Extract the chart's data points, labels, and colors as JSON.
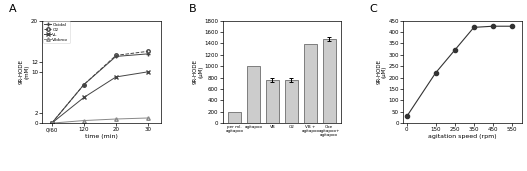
{
  "panelA": {
    "title": "A",
    "xlabel": "time (min)",
    "ylabel": "9R-HODE\n(mM)",
    "x_positions": [
      0,
      1,
      2,
      3
    ],
    "x_ticklabels": [
      "0/60",
      "120",
      "20",
      "30"
    ],
    "lines": {
      "Oxidal": {
        "y": [
          0,
          7.5,
          13.0,
          13.5
        ],
        "marker": "+",
        "ls": "-",
        "color": "#444444",
        "ms": 3.5,
        "lw": 0.7
      },
      "O2": {
        "y": [
          0,
          7.5,
          13.2,
          14.0
        ],
        "marker": "o",
        "ls": "--",
        "color": "#444444",
        "ms": 2.5,
        "lw": 0.7
      },
      "VL": {
        "y": [
          0,
          5.0,
          9.0,
          10.0
        ],
        "marker": "x",
        "ls": "-",
        "color": "#444444",
        "ms": 3.5,
        "lw": 0.7
      },
      "Vibkrov": {
        "y": [
          0,
          0.5,
          0.8,
          1.0
        ],
        "marker": "^",
        "ls": "-",
        "color": "#888888",
        "ms": 2.5,
        "lw": 0.7
      }
    },
    "legend_labels": [
      "Oxidal",
      "O2",
      "VL",
      "Vibkrov"
    ],
    "ylim": [
      0,
      20
    ],
    "yticks": [
      0,
      2,
      10,
      12,
      20
    ],
    "ytick_labels": [
      "0",
      "2",
      "10",
      "12",
      "20"
    ],
    "xlim": [
      -0.3,
      3.4
    ]
  },
  "panelB": {
    "title": "B",
    "ylabel": "9R-HODE\n(μM)",
    "categories": [
      "per ml.\nagitapoo",
      "agitapoo",
      "VB",
      "O2",
      "VB +\nagitapoo",
      "Oxe\nagitapoo+\nagitapoo"
    ],
    "values": [
      200,
      1000,
      750,
      760,
      1380,
      1470
    ],
    "errors": [
      0,
      0,
      35,
      35,
      0,
      35
    ],
    "bar_color": "#cccccc",
    "edgecolor": "#555555",
    "ylim": [
      0,
      1800
    ],
    "yticks": [
      0,
      200,
      400,
      600,
      800,
      1000,
      1200,
      1400,
      1600,
      1800
    ]
  },
  "panelC": {
    "title": "C",
    "xlabel": "agitation speed (rpm)",
    "ylabel": "9R-HODE\n(μM)",
    "x": [
      0,
      150,
      250,
      350,
      450,
      550
    ],
    "y": [
      30,
      220,
      320,
      420,
      425,
      425
    ],
    "marker": "o",
    "ls": "-",
    "color": "#333333",
    "ms": 3,
    "lw": 0.8,
    "ylim": [
      0,
      450
    ],
    "yticks": [
      0,
      50,
      100,
      150,
      200,
      250,
      300,
      350,
      400,
      450
    ],
    "ytick_labels": [
      "0",
      "50",
      "100",
      "150",
      "200",
      "250",
      "300",
      "350",
      "400",
      "450"
    ],
    "xticks": [
      0,
      150,
      250,
      350,
      450,
      550
    ],
    "xlim": [
      -20,
      600
    ]
  }
}
